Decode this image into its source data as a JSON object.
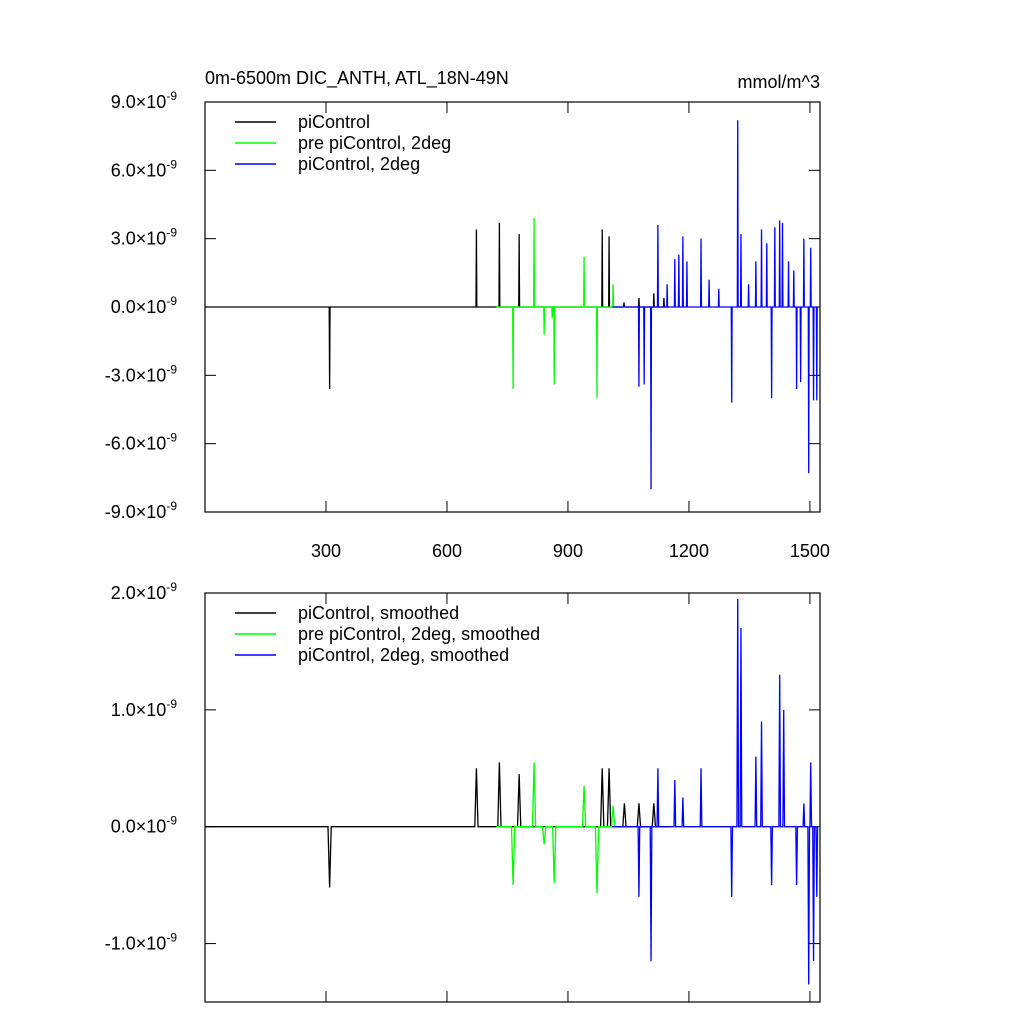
{
  "chart_data": [
    {
      "type": "line",
      "title": "0m-6500m DIC_ANTH, ATL_18N-49N",
      "unit_label": "mmol/m^3",
      "xlim": [
        0,
        1525
      ],
      "xticks": [
        300,
        600,
        900,
        1200,
        1500
      ],
      "ylim": [
        -9e-09,
        9e-09
      ],
      "yticks": [
        {
          "value": 9e-09,
          "label": "9.0×10",
          "exponent": "-9"
        },
        {
          "value": 6e-09,
          "label": "6.0×10",
          "exponent": "-9"
        },
        {
          "value": 3e-09,
          "label": "3.0×10",
          "exponent": "-9"
        },
        {
          "value": 0,
          "label": "0.0×10",
          "exponent": "-9"
        },
        {
          "value": -3e-09,
          "label": "-3.0×10",
          "exponent": "-9"
        },
        {
          "value": -6e-09,
          "label": "-6.0×10",
          "exponent": "-9"
        },
        {
          "value": -9e-09,
          "label": "-9.0×10",
          "exponent": "-9"
        }
      ],
      "series": [
        {
          "name": "piControl",
          "color": "#000000",
          "x": [
            1,
            308,
            309,
            310,
            672,
            673,
            674,
            729,
            730,
            731,
            778,
            779,
            780,
            984,
            985,
            986,
            1001,
            1002,
            1003,
            1038,
            1039,
            1040,
            1075,
            1076,
            1077,
            1112,
            1113,
            1114,
            1137,
            1138,
            1139,
            1150
          ],
          "values": [
            0,
            0,
            -3.6e-09,
            0,
            0,
            3.4e-09,
            0,
            0,
            3.7e-09,
            0,
            0,
            3.2e-09,
            0,
            0,
            3.4e-09,
            0,
            0,
            3.1e-09,
            0,
            0,
            2e-10,
            0,
            0,
            4e-10,
            0,
            0,
            6e-10,
            0,
            0,
            4e-10,
            0,
            0
          ]
        },
        {
          "name": "pre piControl, 2deg",
          "color": "#00ff00",
          "x": [
            722,
            763,
            764,
            765,
            815,
            816,
            817,
            840,
            841,
            842,
            860,
            861,
            862,
            865,
            866,
            867,
            939,
            940,
            941,
            971,
            972,
            973,
            1011,
            1012,
            1013,
            1027
          ],
          "values": [
            0,
            0,
            -3.6e-09,
            0,
            0,
            3.9e-09,
            0,
            0,
            -1.2e-09,
            0,
            0,
            -5e-10,
            0,
            0,
            -3.4e-09,
            0,
            0,
            2.2e-09,
            0,
            0,
            -4e-09,
            0,
            0,
            1e-09,
            0,
            0
          ]
        },
        {
          "name": "piControl, 2deg",
          "color": "#0000ff",
          "x": [
            1010,
            1075,
            1076,
            1077,
            1088,
            1089,
            1090,
            1105,
            1106,
            1107,
            1122,
            1123,
            1124,
            1145,
            1146,
            1147,
            1164,
            1165,
            1166,
            1174,
            1175,
            1176,
            1184,
            1185,
            1186,
            1194,
            1195,
            1196,
            1229,
            1230,
            1231,
            1249,
            1250,
            1251,
            1273,
            1274,
            1275,
            1305,
            1306,
            1307,
            1320,
            1321,
            1322,
            1328,
            1329,
            1330,
            1347,
            1348,
            1349,
            1365,
            1366,
            1367,
            1379,
            1380,
            1381,
            1392,
            1393,
            1394,
            1404,
            1405,
            1406,
            1412,
            1413,
            1414,
            1424,
            1425,
            1426,
            1431,
            1432,
            1433,
            1446,
            1447,
            1448,
            1459,
            1460,
            1461,
            1466,
            1467,
            1468,
            1476,
            1477,
            1478,
            1484,
            1485,
            1486,
            1496,
            1497,
            1498,
            1501,
            1502,
            1503,
            1508,
            1509,
            1510,
            1516,
            1517,
            1518,
            1520
          ],
          "values": [
            0,
            0,
            -3.5e-09,
            0,
            0,
            -3.4e-09,
            0,
            0,
            -8e-09,
            0,
            0,
            3.6e-09,
            0,
            0,
            1e-09,
            0,
            0,
            2.1e-09,
            0,
            0,
            2.3e-09,
            0,
            0,
            3.1e-09,
            0,
            0,
            2e-09,
            0,
            0,
            3e-09,
            0,
            0,
            1.2e-09,
            0,
            0,
            8e-10,
            0,
            0,
            -4.2e-09,
            0,
            0,
            8.2e-09,
            0,
            0,
            3.2e-09,
            0,
            0,
            1e-09,
            0,
            0,
            2e-09,
            0,
            0,
            3.4e-09,
            0,
            0,
            2.8e-09,
            0,
            0,
            -4e-09,
            0,
            0,
            3.5e-09,
            0,
            0,
            3.8e-09,
            0,
            0,
            3.7e-09,
            0,
            0,
            2e-09,
            0,
            0,
            1.6e-09,
            0,
            0,
            -3.6e-09,
            0,
            0,
            -3.3e-09,
            0,
            0,
            3e-09,
            0,
            0,
            -7.3e-09,
            0,
            0,
            2.6e-09,
            0,
            0,
            -4.1e-09,
            0,
            0,
            -4.1e-09,
            0,
            0
          ]
        }
      ]
    },
    {
      "type": "line",
      "xlim": [
        0,
        1525
      ],
      "ylim": [
        -1.5e-09,
        2e-09
      ],
      "yticks": [
        {
          "value": 2e-09,
          "label": "2.0×10",
          "exponent": "-9"
        },
        {
          "value": 1e-09,
          "label": "1.0×10",
          "exponent": "-9"
        },
        {
          "value": 0,
          "label": "0.0×10",
          "exponent": "-9"
        },
        {
          "value": -1e-09,
          "label": "-1.0×10",
          "exponent": "-9"
        }
      ],
      "series": [
        {
          "name": "piControl, smoothed",
          "color": "#000000",
          "x": [
            1,
            305,
            309,
            313,
            669,
            673,
            677,
            726,
            730,
            734,
            775,
            779,
            783,
            981,
            985,
            989,
            998,
            1002,
            1006,
            1036,
            1040,
            1044,
            1072,
            1076,
            1080,
            1109,
            1113,
            1117,
            1150
          ],
          "values": [
            0,
            0,
            -5.2e-10,
            0,
            0,
            5e-10,
            0,
            0,
            5.5e-10,
            0,
            0,
            4.5e-10,
            0,
            0,
            5e-10,
            0,
            0,
            5e-10,
            0,
            0,
            2e-10,
            0,
            0,
            2e-10,
            0,
            0,
            2e-10,
            0,
            0
          ]
        },
        {
          "name": "pre piControl, 2deg, smoothed",
          "color": "#00ff00",
          "x": [
            722,
            760,
            764,
            768,
            812,
            816,
            820,
            837,
            841,
            845,
            862,
            866,
            870,
            936,
            940,
            944,
            968,
            972,
            976,
            1008,
            1012,
            1016,
            1027
          ],
          "values": [
            0,
            0,
            -5e-10,
            0,
            0,
            5.5e-10,
            0,
            0,
            -1.5e-10,
            0,
            0,
            -4.8e-10,
            0,
            0,
            3.5e-10,
            0,
            0,
            -5.7e-10,
            0,
            0,
            1.8e-10,
            0,
            0
          ]
        },
        {
          "name": "piControl, 2deg, smoothed",
          "color": "#0000ff",
          "x": [
            1010,
            1074,
            1076,
            1078,
            1104,
            1106,
            1108,
            1121,
            1123,
            1125,
            1163,
            1165,
            1167,
            1183,
            1185,
            1187,
            1228,
            1230,
            1232,
            1304,
            1306,
            1308,
            1319,
            1321,
            1323,
            1327,
            1329,
            1331,
            1364,
            1366,
            1368,
            1378,
            1380,
            1382,
            1403,
            1405,
            1407,
            1423,
            1425,
            1427,
            1433,
            1435,
            1437,
            1465,
            1467,
            1469,
            1483,
            1485,
            1487,
            1495,
            1497,
            1499,
            1500,
            1502,
            1504,
            1507,
            1509,
            1511,
            1515,
            1517,
            1519,
            1520
          ],
          "values": [
            0,
            0,
            -6e-10,
            0,
            0,
            -1.15e-09,
            0,
            0,
            5e-10,
            0,
            0,
            4e-10,
            0,
            0,
            2.5e-10,
            0,
            0,
            5e-10,
            0,
            0,
            -6e-10,
            0,
            0,
            1.95e-09,
            0,
            0,
            1.7e-09,
            0,
            0,
            6e-10,
            0,
            0,
            9e-10,
            0,
            0,
            -5e-10,
            0,
            0,
            1.3e-09,
            0,
            0,
            1e-09,
            0,
            0,
            -5e-10,
            0,
            0,
            2e-10,
            0,
            0,
            -1.35e-09,
            0,
            0,
            5.5e-10,
            0,
            0,
            -1.15e-09,
            0,
            0,
            -6e-10,
            0,
            0
          ]
        }
      ]
    }
  ]
}
